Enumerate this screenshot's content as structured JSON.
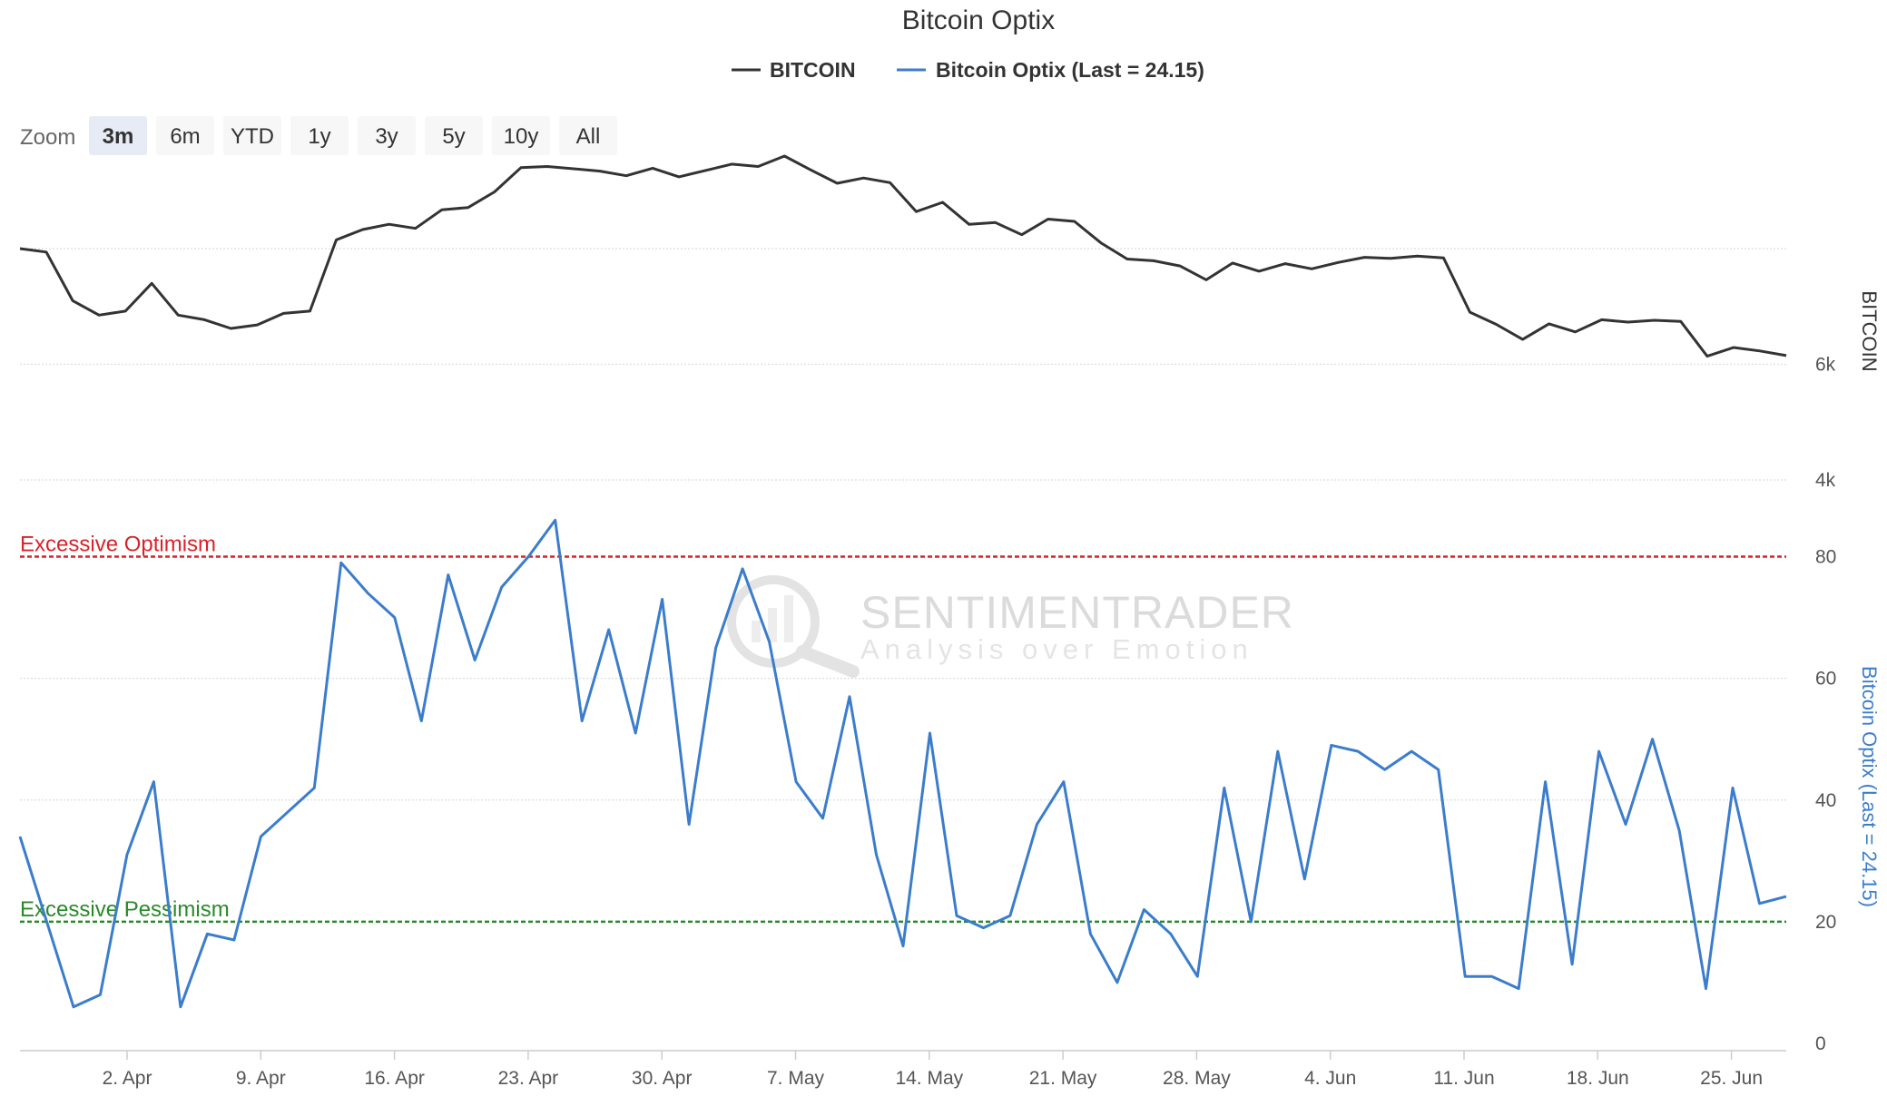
{
  "chart_data": {
    "type": "line",
    "title": "Bitcoin Optix",
    "legend": {
      "placement": "top-center",
      "items": [
        {
          "label": "BITCOIN",
          "color": "#333333"
        },
        {
          "label": "Bitcoin Optix (Last = 24.15)",
          "color": "#3b7dcc"
        }
      ]
    },
    "zoom": {
      "label": "Zoom",
      "buttons": [
        "3m",
        "6m",
        "YTD",
        "1y",
        "3y",
        "5y",
        "10y",
        "All"
      ],
      "active": "3m"
    },
    "x_tick_labels": [
      "2. Apr",
      "9. Apr",
      "16. Apr",
      "23. Apr",
      "30. Apr",
      "7. May",
      "14. May",
      "21. May",
      "28. May",
      "4. Jun",
      "11. Jun",
      "18. Jun",
      "25. Jun"
    ],
    "upper_panel": {
      "axis_title": "BITCOIN",
      "tick_labels": [
        "6k",
        "4k"
      ],
      "ticks": [
        6000,
        4000
      ],
      "ylim": [
        3200,
        9600
      ],
      "series": [
        {
          "name": "BITCOIN",
          "color": "#333333",
          "values": [
            8000,
            7940,
            7100,
            6850,
            6920,
            7400,
            6850,
            6770,
            6620,
            6680,
            6880,
            6920,
            8150,
            8330,
            8420,
            8350,
            8670,
            8710,
            8980,
            9400,
            9420,
            9380,
            9340,
            9260,
            9390,
            9240,
            9350,
            9460,
            9420,
            9600,
            9360,
            9130,
            9220,
            9140,
            8640,
            8800,
            8420,
            8450,
            8240,
            8510,
            8470,
            8100,
            7820,
            7790,
            7700,
            7460,
            7750,
            7610,
            7740,
            7650,
            7760,
            7850,
            7830,
            7870,
            7840,
            6900,
            6690,
            6430,
            6700,
            6560,
            6770,
            6730,
            6760,
            6740,
            6140,
            6290,
            6230,
            6150
          ]
        }
      ]
    },
    "lower_panel": {
      "axis_title": "Bitcoin Optix (Last = 24.15)",
      "tick_labels": [
        "80",
        "60",
        "40",
        "20",
        "0"
      ],
      "ticks": [
        80,
        60,
        40,
        20,
        0
      ],
      "ylim": [
        0,
        85
      ],
      "reference_lines": [
        {
          "label": "Excessive Optimism",
          "value": 80,
          "color": "#d9232a"
        },
        {
          "label": "Excessive Pessimism",
          "value": 20,
          "color": "#2a8a2a"
        }
      ],
      "series": [
        {
          "name": "Bitcoin Optix (Last = 24.15)",
          "color": "#3b7dcc",
          "values": [
            34,
            20,
            6,
            8,
            31,
            43,
            6,
            18,
            17,
            34,
            38,
            42,
            79,
            74,
            70,
            53,
            77,
            63,
            75,
            80,
            86,
            53,
            68,
            51,
            73,
            36,
            65,
            78,
            66,
            43,
            37,
            57,
            31,
            16,
            51,
            21,
            19,
            21,
            36,
            43,
            18,
            10,
            22,
            18,
            11,
            42,
            20,
            48,
            27,
            49,
            48,
            45,
            48,
            45,
            11,
            11,
            9,
            43,
            13,
            48,
            36,
            50,
            35,
            9,
            42,
            23,
            24.15
          ]
        }
      ]
    },
    "watermark": {
      "main": "SENTIMENTRADER",
      "sub": "Analysis over Emotion"
    }
  }
}
